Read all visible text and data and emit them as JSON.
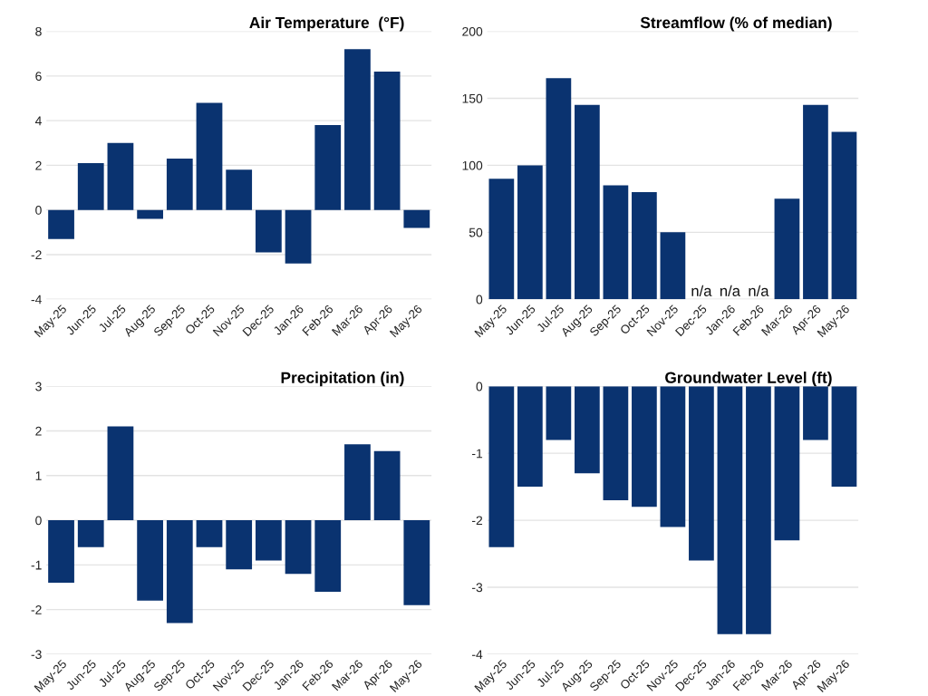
{
  "chart_data": [
    {
      "type": "bar",
      "title": "Air Temperature  (°F)",
      "categories": [
        "May-25",
        "Jun-25",
        "Jul-25",
        "Aug-25",
        "Sep-25",
        "Oct-25",
        "Nov-25",
        "Dec-25",
        "Jan-26",
        "Feb-26",
        "Mar-26",
        "Apr-26",
        "May-26"
      ],
      "values": [
        -1.3,
        2.1,
        3.0,
        -0.4,
        2.3,
        4.8,
        1.8,
        -1.9,
        -2.4,
        3.8,
        7.2,
        6.2,
        -0.8
      ],
      "color": "#0a3370",
      "ylim": [
        -4,
        8
      ],
      "yticks": [
        -4,
        -2,
        0,
        2,
        4,
        6,
        8
      ],
      "grid": "y"
    },
    {
      "type": "bar",
      "title": "Streamflow (% of median)",
      "categories": [
        "May-25",
        "Jun-25",
        "Jul-25",
        "Aug-25",
        "Sep-25",
        "Oct-25",
        "Nov-25",
        "Dec-25",
        "Jan-26",
        "Feb-26",
        "Mar-26",
        "Apr-26",
        "May-26"
      ],
      "values": [
        90,
        100,
        165,
        145,
        85,
        80,
        50,
        null,
        null,
        null,
        75,
        145,
        125
      ],
      "color": "#0a3370",
      "value_labels": [
        null,
        null,
        null,
        null,
        null,
        null,
        null,
        "n/a",
        "n/a",
        "n/a",
        null,
        null,
        null
      ],
      "ylim": [
        0,
        200
      ],
      "yticks": [
        0,
        50,
        100,
        150,
        200
      ],
      "grid": "y"
    },
    {
      "type": "bar",
      "title": "Precipitation (in)",
      "categories": [
        "May-25",
        "Jun-25",
        "Jul-25",
        "Aug-25",
        "Sep-25",
        "Oct-25",
        "Nov-25",
        "Dec-25",
        "Jan-26",
        "Feb-26",
        "Mar-26",
        "Apr-26",
        "May-26"
      ],
      "values": [
        -1.4,
        -0.6,
        2.1,
        -1.8,
        -2.3,
        -0.6,
        -1.1,
        -0.9,
        -1.2,
        -1.6,
        1.7,
        1.55,
        -1.9
      ],
      "color": "#0a3370",
      "ylim": [
        -3,
        3
      ],
      "yticks": [
        -3,
        -2,
        -1,
        0,
        1,
        2,
        3
      ],
      "grid": "y"
    },
    {
      "type": "bar",
      "title": "Groundwater Level (ft)",
      "categories": [
        "May-25",
        "Jun-25",
        "Jul-25",
        "Aug-25",
        "Sep-25",
        "Oct-25",
        "Nov-25",
        "Dec-25",
        "Jan-26",
        "Feb-26",
        "Mar-26",
        "Apr-26",
        "May-26"
      ],
      "values": [
        -2.4,
        -1.5,
        -0.8,
        -1.3,
        -1.7,
        -1.8,
        -2.1,
        -2.6,
        -3.7,
        -3.7,
        -2.3,
        -0.8,
        -1.5
      ],
      "color": "#0a3370",
      "ylim": [
        -4,
        0
      ],
      "yticks": [
        -4,
        -3,
        -2,
        -1,
        0
      ],
      "grid": "y"
    }
  ]
}
